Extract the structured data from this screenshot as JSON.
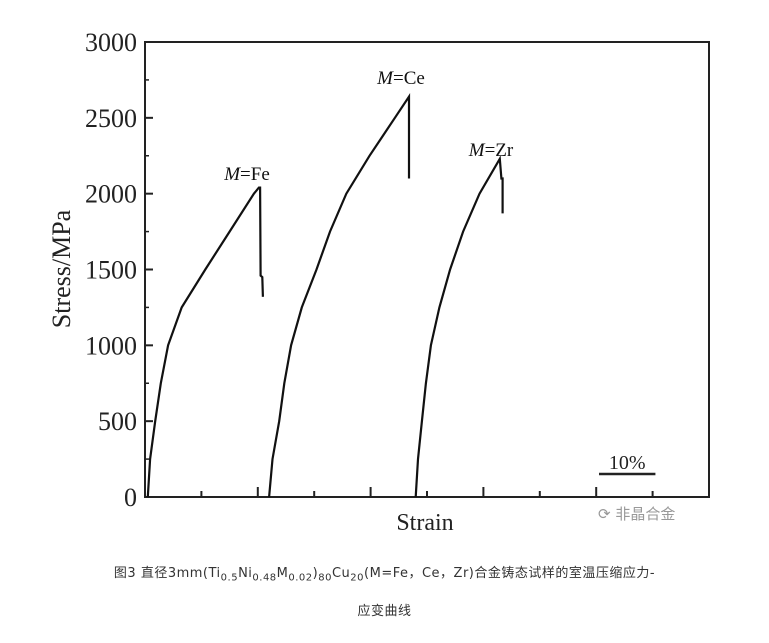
{
  "chart_data": {
    "type": "line",
    "title": "",
    "xlabel": "Strain",
    "ylabel": "Stress/MPa",
    "xlim": [
      0,
      100
    ],
    "ylim": [
      0,
      3000
    ],
    "yticks": [
      0,
      500,
      1000,
      1500,
      2000,
      2500,
      3000
    ],
    "ytick_labels": [
      "0",
      "500",
      "1000",
      "1500",
      "2000",
      "2500",
      "3000"
    ],
    "scale_bar_label": "10%",
    "series": [
      {
        "name": "M=Fe",
        "label_italic": "M",
        "label_rest": "=Fe",
        "x": [
          0.5,
          0.9,
          1.8,
          2.8,
          4.1,
          6.5,
          10.7,
          15,
          19.3,
          20.2,
          20.4,
          20.5,
          20.8,
          20.9
        ],
        "y": [
          0,
          250,
          500,
          750,
          1000,
          1250,
          1500,
          1750,
          2000,
          2040,
          2040,
          1460,
          1450,
          1320
        ]
      },
      {
        "name": "M=Ce",
        "label_italic": "M",
        "label_rest": "=Ce",
        "x": [
          22,
          22.6,
          23.8,
          24.7,
          25.9,
          27.8,
          30.4,
          32.8,
          35.7,
          39.8,
          44.3,
          46.8,
          46.8
        ],
        "y": [
          0,
          250,
          500,
          750,
          1000,
          1250,
          1500,
          1750,
          2000,
          2250,
          2500,
          2640,
          2100
        ]
      },
      {
        "name": "M=Zr",
        "label_italic": "M",
        "label_rest": "=Zr",
        "x": [
          48,
          48.4,
          49.1,
          49.8,
          50.7,
          52.2,
          54.1,
          56.4,
          59.3,
          62.9,
          63.2,
          63.4,
          63.4
        ],
        "y": [
          0,
          250,
          500,
          750,
          1000,
          1250,
          1500,
          1750,
          2000,
          2230,
          2100,
          2100,
          1870
        ]
      }
    ]
  },
  "watermark": "非晶合金",
  "caption": {
    "line1": [
      {
        "t": "图3 直径3mm(Ti"
      },
      {
        "s": "0.5"
      },
      {
        "t": "Ni"
      },
      {
        "s": "0.48"
      },
      {
        "t": "M"
      },
      {
        "s": "0.02"
      },
      {
        "t": ")"
      },
      {
        "s": "80"
      },
      {
        "t": "Cu"
      },
      {
        "s": "20"
      },
      {
        "t": "(M=Fe，Ce，Zr)合金铸态试样的室温压缩应力-"
      }
    ],
    "line2": "应变曲线"
  }
}
